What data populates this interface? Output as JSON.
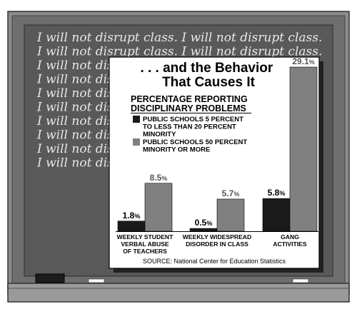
{
  "chalkboard": {
    "lines": [
      "I will not disrupt class.  I will not disrupt class.",
      "I will not disrupt class.  I will not disrupt class.",
      "I will not disrupt class.",
      "I will not disrupt class.",
      "I will not disrupt class.",
      "I will not disrupt class.",
      "I will not disrupt class.",
      "I will not disrupt class.",
      "I will not disrupt class.",
      "I will not disrupt class."
    ]
  },
  "colors": {
    "series_under20": "#1a1a1a",
    "series_50plus": "#808080",
    "board": "#5a5a5a",
    "frame": "#8a8a8a"
  },
  "chart_data": {
    "type": "bar",
    "title_lines": [
      ". . . and the Behavior",
      "That Causes It"
    ],
    "subtitle_lines": [
      "PERCENTAGE REPORTING",
      "DISCIPLINARY PROBLEMS"
    ],
    "categories": [
      [
        "WEEKLY STUDENT",
        "VERBAL ABUSE",
        "OF TEACHERS"
      ],
      [
        "WEEKLY WIDESPREAD",
        "DISORDER IN CLASS"
      ],
      [
        "GANG",
        "ACTIVITIES"
      ]
    ],
    "series": [
      {
        "legend_lines": [
          "PUBLIC SCHOOLS 5 PERCENT",
          "TO LESS THAN 20 PERCENT",
          "MINORITY"
        ],
        "values": [
          1.8,
          0.5,
          5.8
        ],
        "labels": [
          "1.8",
          "0.5",
          "5.8"
        ]
      },
      {
        "legend_lines": [
          "PUBLIC SCHOOLS 50 PERCENT",
          "MINORITY OR MORE"
        ],
        "values": [
          8.5,
          5.7,
          29.1
        ],
        "labels": [
          "8.5",
          "5.7",
          "29.1"
        ]
      }
    ],
    "unit_suffix": "%",
    "ylim": [
      0,
      29.1
    ],
    "grid": false,
    "legend_position": "top-left",
    "source": "SOURCE: National Center for Education Statistics"
  }
}
